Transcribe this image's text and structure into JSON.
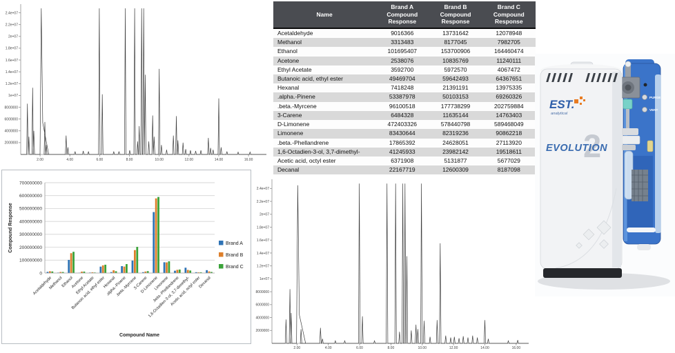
{
  "table": {
    "headers": [
      "Name",
      "Brand A Compound Response",
      "Brand B Compound Response",
      "Brand C Compound Response"
    ],
    "rows": [
      {
        "name": "Acetaldehyde",
        "brand_a": "9016366",
        "brand_b": "13731642",
        "brand_c": "12078948"
      },
      {
        "name": "Methanol",
        "brand_a": "3313483",
        "brand_b": "8177045",
        "brand_c": "7982705"
      },
      {
        "name": "Ethanol",
        "brand_a": "101695407",
        "brand_b": "153700906",
        "brand_c": "164460474"
      },
      {
        "name": "Acetone",
        "brand_a": "2538076",
        "brand_b": "10835769",
        "brand_c": "11240111"
      },
      {
        "name": "Ethyl Acetate",
        "brand_a": "3592700",
        "brand_b": "5972570",
        "brand_c": "4067472"
      },
      {
        "name": "Butanoic acid, ethyl ester",
        "brand_a": "49469704",
        "brand_b": "59642493",
        "brand_c": "64367651"
      },
      {
        "name": "Hexanal",
        "brand_a": "7418248",
        "brand_b": "21391191",
        "brand_c": "13975335"
      },
      {
        "name": ".alpha.-Pinene",
        "brand_a": "53387978",
        "brand_b": "50103153",
        "brand_c": "69260326"
      },
      {
        "name": ".beta.-Myrcene",
        "brand_a": "96100518",
        "brand_b": "177738299",
        "brand_c": "202759884"
      },
      {
        "name": "3-Carene",
        "brand_a": "6484328",
        "brand_b": "11635144",
        "brand_c": "14763403"
      },
      {
        "name": "D-Limonene",
        "brand_a": "472403326",
        "brand_b": "578440798",
        "brand_c": "589468049"
      },
      {
        "name": "Limonene",
        "brand_a": "83430644",
        "brand_b": "82319236",
        "brand_c": "90862218"
      },
      {
        "name": ".beta.-Phellandrene",
        "brand_a": "17865392",
        "brand_b": "24628051",
        "brand_c": "27113920"
      },
      {
        "name": "1,6-Octadien-3-ol, 3,7-dimethyl-",
        "brand_a": "41245933",
        "brand_b": "23982142",
        "brand_c": "19518611"
      },
      {
        "name": "Acetic acid, octyl ester",
        "brand_a": "6371908",
        "brand_b": "5131877",
        "brand_c": "5677029"
      },
      {
        "name": "Decanal",
        "brand_a": "22167719",
        "brand_b": "12600309",
        "brand_c": "8187098"
      }
    ]
  },
  "instrument": {
    "brand": "EST.",
    "brand_sub": "analytical",
    "model": "EVOLUTION",
    "model_number": "2",
    "panel_labels": {
      "purge": "PURGE",
      "vent": "VENT"
    }
  },
  "colors": {
    "brand_a": "#2e73b5",
    "brand_b": "#dd7f2b",
    "brand_c": "#3ba33a",
    "table_header_bg": "#4a4c51",
    "table_stripe": "#d9d9d9",
    "trace": "#3c3c3c",
    "est_blue": "#2e5ea9",
    "est_orange": "#e87b22"
  },
  "chart_data": [
    {
      "id": "chromatogram-top",
      "type": "line",
      "title": "",
      "xlabel": "",
      "ylabel": "",
      "xlim": [
        0.7,
        17.2
      ],
      "ylim": [
        0,
        25000000
      ],
      "ytick_values": [
        2000000,
        4000000,
        6000000,
        8000000,
        10000000,
        12000000,
        14000000,
        16000000,
        18000000,
        20000000,
        22000000,
        24000000
      ],
      "ytick_labels": [
        "2000000",
        "4000000",
        "6000000",
        "8000000",
        "1e+07",
        "1.2e+07",
        "1.4e+07",
        "1.6e+07",
        "1.8e+07",
        "2e+07",
        "2.2e+07",
        "2.4e+07"
      ],
      "xtick_values": [
        2,
        4,
        6,
        8,
        10,
        12,
        14,
        16
      ],
      "xtick_labels": [
        "2.00",
        "4.00",
        "6.00",
        "8.00",
        "10.00",
        "12.00",
        "14.00",
        "16.00"
      ],
      "peaks_note": "retention time (min), height (millions of counts), optional width; heights > 25 are clipped at plot top",
      "peaks": [
        [
          1.15,
          8.6
        ],
        [
          1.25,
          3.0
        ],
        [
          1.5,
          11.3
        ],
        [
          1.58,
          4.0
        ],
        [
          2.08,
          30,
          0.22
        ],
        [
          2.32,
          5.5
        ],
        [
          2.42,
          1.6
        ],
        [
          3.75,
          3.2
        ],
        [
          3.87,
          1.2
        ],
        [
          4.35,
          0.5
        ],
        [
          4.9,
          0.6
        ],
        [
          5.25,
          0.5
        ],
        [
          5.98,
          30
        ],
        [
          6.18,
          10.2
        ],
        [
          6.95,
          0.5
        ],
        [
          7.3,
          0.5
        ],
        [
          7.72,
          30
        ],
        [
          8.02,
          0.7
        ],
        [
          8.35,
          30
        ],
        [
          8.55,
          2.2
        ],
        [
          8.66,
          4.8
        ],
        [
          8.82,
          30
        ],
        [
          8.96,
          30
        ],
        [
          9.06,
          13.5
        ],
        [
          9.3,
          2.2
        ],
        [
          9.56,
          6.6
        ],
        [
          9.66,
          3.0
        ],
        [
          10.0,
          14.5
        ],
        [
          10.15,
          1.6
        ],
        [
          10.5,
          0.8
        ],
        [
          10.95,
          3.2
        ],
        [
          11.15,
          6.5
        ],
        [
          11.26,
          2.4
        ],
        [
          11.6,
          2.0
        ],
        [
          11.78,
          0.9
        ],
        [
          12.1,
          0.7
        ],
        [
          12.45,
          0.6
        ],
        [
          12.8,
          0.7
        ],
        [
          13.3,
          2.8
        ],
        [
          13.45,
          1.1
        ],
        [
          13.62,
          0.8
        ],
        [
          14.0,
          9.5
        ],
        [
          14.16,
          1.2
        ],
        [
          14.55,
          0.5
        ],
        [
          15.3,
          0.4
        ],
        [
          16.1,
          0.4
        ]
      ]
    },
    {
      "id": "brand-comparison-bar-chart",
      "type": "bar",
      "title": "",
      "xlabel": "Compound Name",
      "ylabel": "Compound Response",
      "ylim": [
        0,
        700000000
      ],
      "ytick_values": [
        0,
        100000000,
        200000000,
        300000000,
        400000000,
        500000000,
        600000000,
        700000000
      ],
      "ytick_labels": [
        "0",
        "100000000",
        "200000000",
        "300000000",
        "400000000",
        "500000000",
        "600000000",
        "700000000"
      ],
      "grid": true,
      "legend_position": "right",
      "categories": [
        "Acetaldehyde",
        "Methanol",
        "Ethanol",
        "Acetone",
        "Ethyl Acetate",
        "Butanoic acid, ethyl ester",
        "Hexanal",
        ".alpha.-Pinene",
        ".beta.-Myrcene",
        "3-Carene",
        "D-Limonene",
        "Limonene",
        ".beta.-Phellandrene",
        "1,6-Octadien-3-ol, 3,7-dimethyl-",
        "Acetic acid, octyl ester",
        "Decanal"
      ],
      "series": [
        {
          "name": "Brand A",
          "color": "#2e73b5",
          "values": [
            9016366,
            3313483,
            101695407,
            2538076,
            3592700,
            49469704,
            7418248,
            53387978,
            96100518,
            6484328,
            472403326,
            83430644,
            17865392,
            41245933,
            6371908,
            22167719
          ]
        },
        {
          "name": "Brand B",
          "color": "#dd7f2b",
          "values": [
            13731642,
            8177045,
            153700906,
            10835769,
            5972570,
            59642493,
            21391191,
            50103153,
            177738299,
            11635144,
            578440798,
            82319236,
            24628051,
            23982142,
            5131877,
            12600309
          ]
        },
        {
          "name": "Brand C",
          "color": "#3ba33a",
          "values": [
            12078948,
            7982705,
            164460474,
            11240111,
            4067472,
            64367651,
            13975335,
            69260326,
            202759884,
            14763403,
            589468049,
            90862218,
            27113920,
            19518611,
            5677029,
            8187098
          ]
        }
      ]
    },
    {
      "id": "chromatogram-bottom",
      "type": "line",
      "title": "",
      "xlabel": "",
      "ylabel": "",
      "xlim": [
        0.4,
        16.8
      ],
      "ylim": [
        0,
        25000000
      ],
      "ytick_values": [
        2000000,
        4000000,
        6000000,
        8000000,
        10000000,
        12000000,
        14000000,
        16000000,
        18000000,
        20000000,
        22000000,
        24000000
      ],
      "ytick_labels": [
        "2000000",
        "4000000",
        "6000000",
        "8000000",
        "1e+07",
        "1.2e+07",
        "1.4e+07",
        "1.6e+07",
        "1.8e+07",
        "2e+07",
        "2.2e+07",
        "2.4e+07"
      ],
      "xtick_values": [
        2,
        4,
        6,
        8,
        10,
        12,
        14,
        16
      ],
      "xtick_labels": [
        "2.00",
        "4.00",
        "6.00",
        "8.00",
        "10.00",
        "12.00",
        "14.00",
        "16.00"
      ],
      "peaks_note": "retention time (min), height (millions of counts), optional width; heights > 25 are clipped at plot top",
      "peaks": [
        [
          1.3,
          3.7
        ],
        [
          1.55,
          8.4
        ],
        [
          1.63,
          4.7
        ],
        [
          2.05,
          24.5,
          0.2
        ],
        [
          2.26,
          2.2
        ],
        [
          3.5,
          2.4
        ],
        [
          3.63,
          0.7
        ],
        [
          4.45,
          0.4
        ],
        [
          5.05,
          0.4
        ],
        [
          5.98,
          30
        ],
        [
          6.18,
          4.2
        ],
        [
          6.95,
          0.4
        ],
        [
          7.75,
          30
        ],
        [
          8.3,
          30
        ],
        [
          8.55,
          1.8
        ],
        [
          8.76,
          30
        ],
        [
          8.9,
          30
        ],
        [
          9.02,
          13.5
        ],
        [
          9.3,
          2.0
        ],
        [
          9.6,
          2.9
        ],
        [
          9.72,
          2.2
        ],
        [
          9.95,
          30
        ],
        [
          10.12,
          3.5
        ],
        [
          10.5,
          1.0
        ],
        [
          10.95,
          3.6
        ],
        [
          11.15,
          15.5
        ],
        [
          11.5,
          1.2
        ],
        [
          11.82,
          0.9
        ],
        [
          12.05,
          1.0
        ],
        [
          12.35,
          0.8
        ],
        [
          12.62,
          1.1
        ],
        [
          12.92,
          0.9
        ],
        [
          13.22,
          1.2
        ],
        [
          13.52,
          0.9
        ],
        [
          14.0,
          3.6
        ],
        [
          14.22,
          0.7
        ],
        [
          15.5,
          0.4
        ],
        [
          16.1,
          0.5
        ]
      ]
    }
  ]
}
